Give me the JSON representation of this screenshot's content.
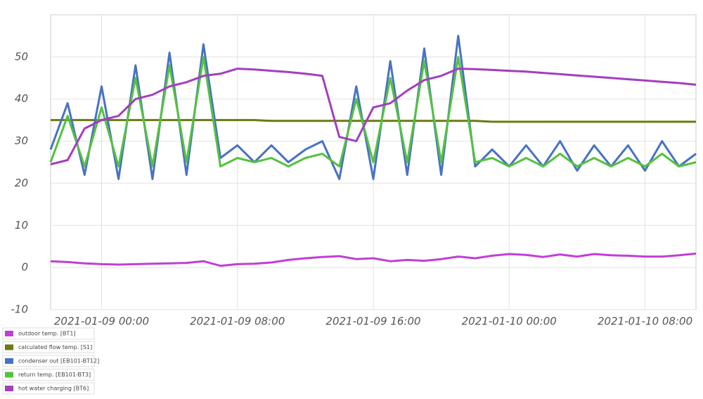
{
  "chart_data": {
    "type": "line",
    "x": [
      "2021-01-08 21:00",
      "2021-01-08 22:00",
      "2021-01-08 23:00",
      "2021-01-09 00:00",
      "2021-01-09 01:00",
      "2021-01-09 02:00",
      "2021-01-09 03:00",
      "2021-01-09 04:00",
      "2021-01-09 05:00",
      "2021-01-09 06:00",
      "2021-01-09 07:00",
      "2021-01-09 08:00",
      "2021-01-09 09:00",
      "2021-01-09 10:00",
      "2021-01-09 11:00",
      "2021-01-09 12:00",
      "2021-01-09 13:00",
      "2021-01-09 14:00",
      "2021-01-09 15:00",
      "2021-01-09 16:00",
      "2021-01-09 17:00",
      "2021-01-09 18:00",
      "2021-01-09 19:00",
      "2021-01-09 20:00",
      "2021-01-09 21:00",
      "2021-01-09 22:00",
      "2021-01-09 23:00",
      "2021-01-10 00:00",
      "2021-01-10 01:00",
      "2021-01-10 02:00",
      "2021-01-10 03:00",
      "2021-01-10 04:00",
      "2021-01-10 05:00",
      "2021-01-10 06:00",
      "2021-01-10 07:00",
      "2021-01-10 08:00",
      "2021-01-10 09:00",
      "2021-01-10 10:00",
      "2021-01-10 11:00"
    ],
    "series": [
      {
        "name": "outdoor temp. [BT1]",
        "color": "#c13fd6",
        "values": [
          1.5,
          1.3,
          1.0,
          0.8,
          0.7,
          0.8,
          0.9,
          1.0,
          1.1,
          1.5,
          0.4,
          0.8,
          0.9,
          1.2,
          1.8,
          2.2,
          2.5,
          2.7,
          2.0,
          2.2,
          1.5,
          1.8,
          1.6,
          2.0,
          2.6,
          2.2,
          2.8,
          3.2,
          3.0,
          2.5,
          3.1,
          2.6,
          3.2,
          2.9,
          2.8,
          2.6,
          2.6,
          2.9,
          3.3
        ]
      },
      {
        "name": "calculated flow temp. [S1]",
        "color": "#6b7a12",
        "values": [
          35,
          35,
          35,
          35,
          35,
          35,
          35,
          35,
          35,
          35,
          35,
          35,
          35,
          34.8,
          34.8,
          34.8,
          34.8,
          34.8,
          34.8,
          34.8,
          34.8,
          34.8,
          34.8,
          34.8,
          34.8,
          34.8,
          34.6,
          34.6,
          34.6,
          34.6,
          34.6,
          34.6,
          34.6,
          34.6,
          34.6,
          34.6,
          34.6,
          34.6,
          34.6
        ]
      },
      {
        "name": "condenser out [EB101-BT12]",
        "color": "#4872c4",
        "values": [
          28,
          39,
          22,
          43,
          21,
          48,
          21,
          51,
          22,
          53,
          26,
          29,
          25,
          29,
          25,
          28,
          30,
          21,
          43,
          21,
          49,
          22,
          52,
          22,
          55,
          24,
          28,
          24,
          29,
          24,
          30,
          23,
          29,
          24,
          29,
          23,
          30,
          24,
          27
        ]
      },
      {
        "name": "return temp. [EB101-BT3]",
        "color": "#55c23e",
        "values": [
          25,
          36,
          24,
          38,
          24,
          45,
          24,
          48,
          25,
          50,
          24,
          26,
          25,
          26,
          24,
          26,
          27,
          24,
          40,
          25,
          45,
          25,
          49,
          25,
          50,
          25,
          26,
          24,
          26,
          24,
          27,
          24,
          26,
          24,
          26,
          24,
          27,
          24,
          25
        ]
      },
      {
        "name": "hot water charging [BT6]",
        "color": "#a43ebd",
        "values": [
          24.5,
          25.5,
          33,
          35,
          36,
          40,
          41,
          43,
          44,
          45.5,
          46,
          47.2,
          47,
          46.7,
          46.4,
          46,
          45.5,
          31,
          30,
          38,
          39,
          42,
          44.5,
          45.5,
          47.2,
          47.1,
          46.9,
          46.7,
          46.5,
          46.2,
          45.9,
          45.6,
          45.3,
          45,
          44.7,
          44.4,
          44.1,
          43.8,
          43.4
        ]
      }
    ],
    "xlim": [
      "2021-01-08 21:00",
      "2021-01-10 11:00"
    ],
    "xticks": [
      "2021-01-09 00:00",
      "2021-01-09 08:00",
      "2021-01-09 16:00",
      "2021-01-10 00:00",
      "2021-01-10 08:00"
    ],
    "ylim": [
      -10,
      60
    ],
    "yticks": [
      -10,
      0,
      10,
      20,
      30,
      40,
      50
    ],
    "grid": true,
    "legend": "bottom-left"
  }
}
